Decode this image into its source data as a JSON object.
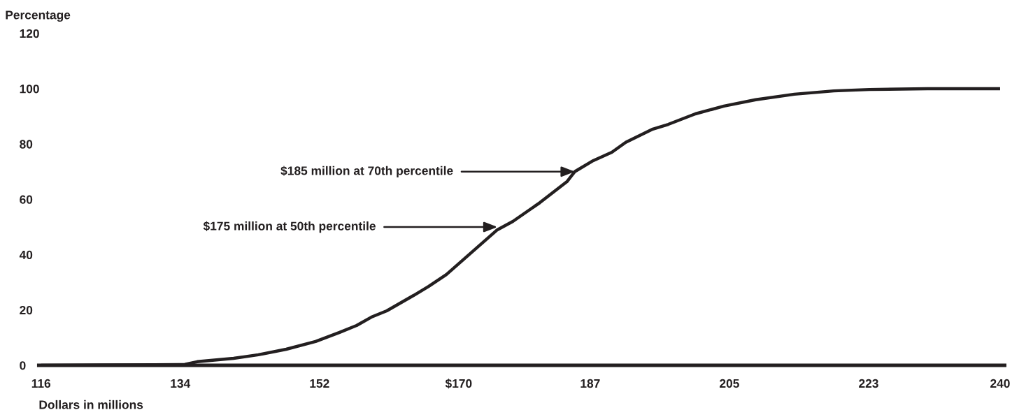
{
  "chart_data": {
    "type": "line",
    "ylabel": "Percentage",
    "xlabel": "Dollars in millions",
    "x": [
      116,
      123.7,
      130.6,
      134.6,
      136.2,
      140.9,
      144.1,
      147.7,
      151.5,
      154.6,
      156.8,
      158.7,
      160.7,
      164.2,
      166.1,
      168.4,
      175,
      177,
      180.5,
      184,
      185,
      187.4,
      189.8,
      191.6,
      195.1,
      197.1,
      200.6,
      204.3,
      208.4,
      213.4,
      218.5,
      223.1,
      230.6,
      240
    ],
    "series": [
      {
        "color": "#231f20",
        "values": [
          0,
          0.1,
          0.2,
          0.3,
          1.3,
          2.5,
          3.8,
          5.8,
          8.6,
          11.9,
          14.4,
          17.4,
          19.7,
          25.3,
          28.5,
          32.8,
          49,
          52,
          58.8,
          66.4,
          70,
          74,
          77,
          80.6,
          85.4,
          87.1,
          90.9,
          93.7,
          96,
          98,
          99.2,
          99.7,
          100,
          100
        ]
      }
    ],
    "xlim": [
      115.7,
      240.6
    ],
    "ylim": [
      0,
      120
    ],
    "xticks": [
      116,
      134,
      152,
      {
        "value": 170,
        "label": "$170"
      },
      187,
      205,
      223,
      240
    ],
    "yticks": [
      0,
      20,
      40,
      60,
      80,
      100,
      120
    ],
    "grid": false,
    "legend": false,
    "marker": "none",
    "line_style": "solid",
    "annotations": [
      {
        "text": "$185 million at 70th percentile",
        "x": 185,
        "y": 70
      },
      {
        "text": "$175 million at 50th percentile",
        "x": 175,
        "y": 50
      }
    ]
  }
}
